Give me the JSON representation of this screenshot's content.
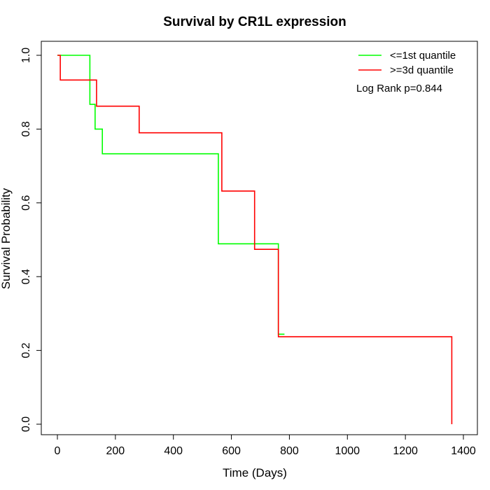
{
  "chart_data": {
    "type": "line",
    "subtype": "kaplan-meier step curve",
    "title": "Survival by CR1L expression",
    "xlabel": "Time (Days)",
    "ylabel": "Survival Probability",
    "xlim": [
      0,
      1400
    ],
    "ylim": [
      0,
      1.0
    ],
    "x_ticks": [
      0,
      200,
      400,
      600,
      800,
      1000,
      1200,
      1400
    ],
    "x_tick_labels": [
      "0",
      "200",
      "400",
      "600",
      "800",
      "1000",
      "1200",
      "1400"
    ],
    "y_ticks": [
      0.0,
      0.2,
      0.4,
      0.6,
      0.8,
      1.0
    ],
    "y_tick_labels": [
      "0.0",
      "0.2",
      "0.4",
      "0.6",
      "0.8",
      "1.0"
    ],
    "grid": false,
    "legend_position": "top-right",
    "annotation": "Log Rank p=0.844",
    "series": [
      {
        "name": "<=1st quantile",
        "color": "#00ff00",
        "x": [
          0,
          103,
          112,
          130,
          155,
          555,
          762,
          783
        ],
        "y": [
          1.0,
          1.0,
          0.867,
          0.8,
          0.733,
          0.489,
          0.244,
          0.244
        ]
      },
      {
        "name": ">=3d quantile",
        "color": "#ff0000",
        "x": [
          0,
          10,
          135,
          282,
          567,
          680,
          762,
          1360
        ],
        "y": [
          1.0,
          0.933,
          0.862,
          0.79,
          0.632,
          0.474,
          0.237,
          0.0
        ]
      }
    ]
  }
}
